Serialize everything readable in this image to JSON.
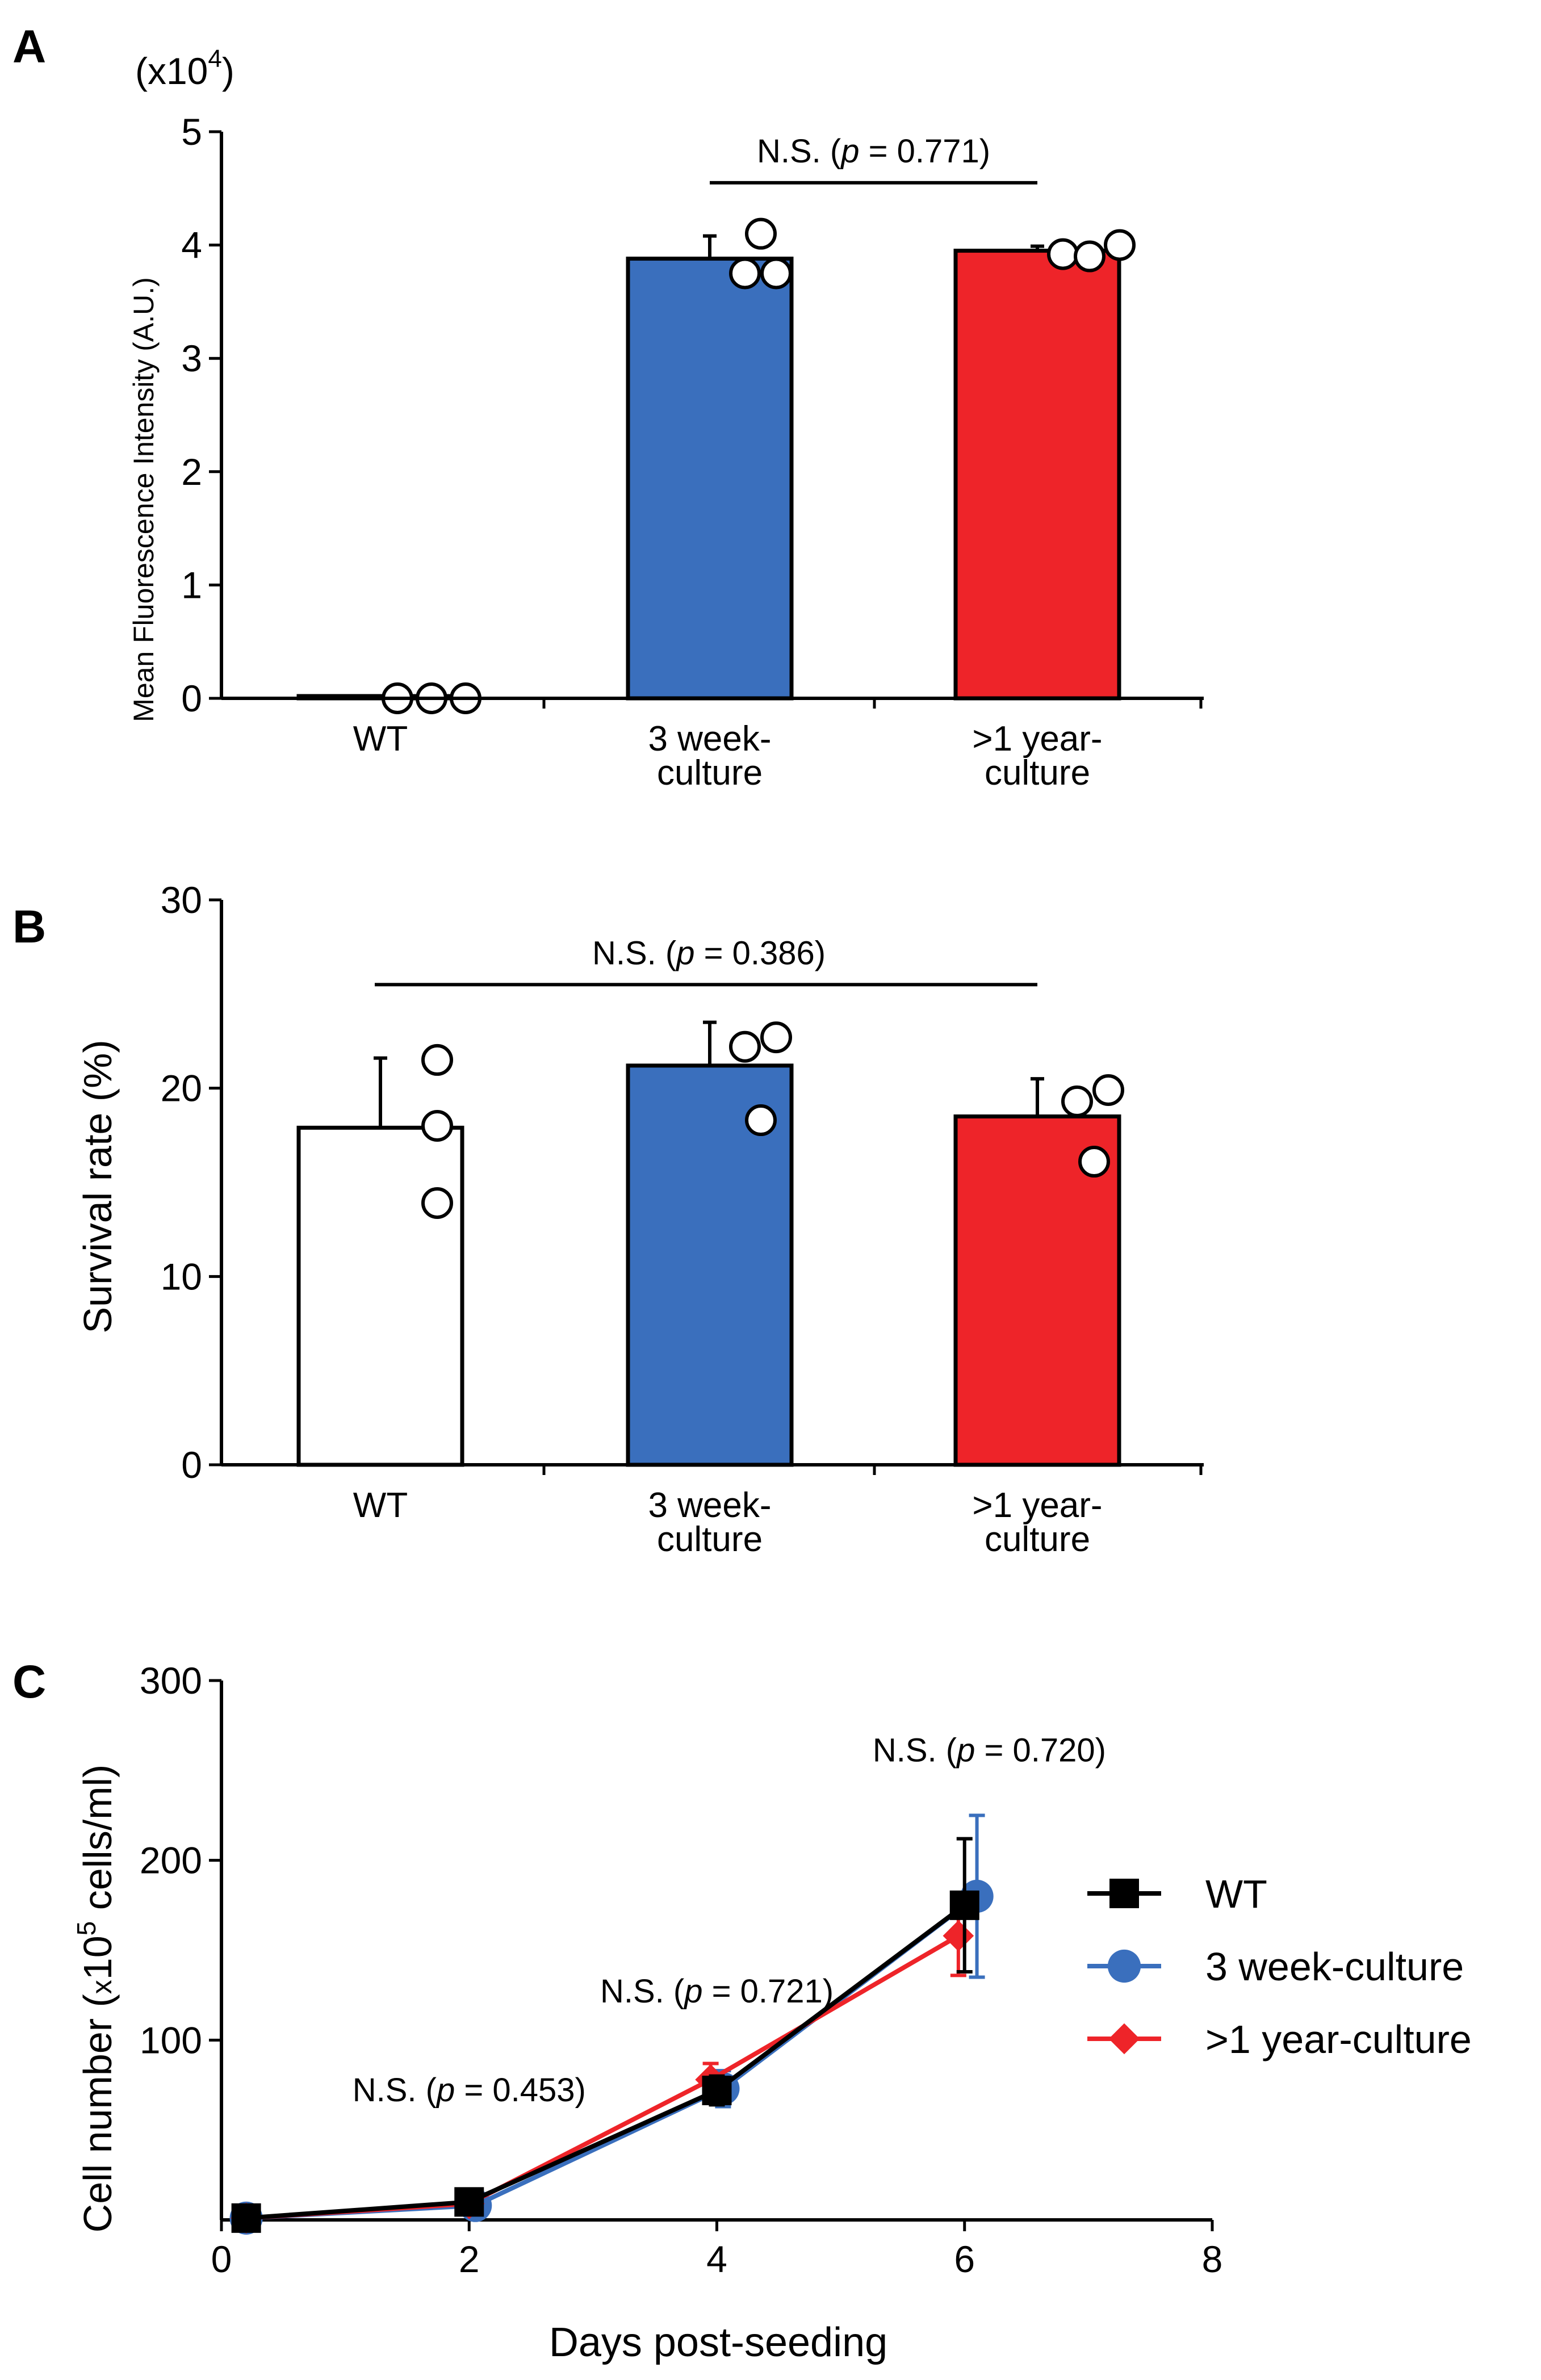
{
  "chart_data": [
    {
      "panel": "A",
      "type": "bar",
      "ylabel": "Mean Fluorescence Intensity (A.U.)",
      "y_multiplier": "(x10",
      "y_multiplier_exp": "4",
      "y_multiplier_close": ")",
      "ylim": [
        0,
        5
      ],
      "yticks": [
        "0",
        "1",
        "2",
        "3",
        "4",
        "5"
      ],
      "categories": [
        {
          "line1": "WT",
          "line2": ""
        },
        {
          "line1": "3 week-",
          "line2": "culture"
        },
        {
          "line1": ">1 year-",
          "line2": "culture"
        }
      ],
      "values": [
        0.02,
        3.88,
        3.95
      ],
      "errors": [
        0.0,
        0.2,
        0.04
      ],
      "bar_colors": [
        "#ffffff",
        "#3a6fbd",
        "#ee2429"
      ],
      "points": [
        [
          0.0,
          0.0,
          0.0
        ],
        [
          3.75,
          4.1,
          3.75
        ],
        [
          3.92,
          3.9,
          4.0
        ]
      ],
      "annotation": {
        "prefix": "N.S. (",
        "p": "p",
        "rest": " = 0.771)",
        "from": 1,
        "to": 2,
        "y": 4.55
      }
    },
    {
      "panel": "B",
      "type": "bar",
      "ylabel": "Survival rate (%)",
      "ylim": [
        0,
        30
      ],
      "yticks": [
        "0",
        "10",
        "20",
        "30"
      ],
      "categories": [
        {
          "line1": "WT",
          "line2": ""
        },
        {
          "line1": "3 week-",
          "line2": "culture"
        },
        {
          "line1": ">1 year-",
          "line2": "culture"
        }
      ],
      "values": [
        17.9,
        21.2,
        18.5
      ],
      "errors": [
        3.7,
        2.3,
        2.0
      ],
      "bar_colors": [
        "#ffffff",
        "#3a6fbd",
        "#ee2429"
      ],
      "points": [
        [
          21.5,
          18.0,
          13.9
        ],
        [
          22.2,
          22.7,
          18.3
        ],
        [
          19.3,
          19.9,
          16.1
        ]
      ],
      "annotation": {
        "prefix": "N.S. (",
        "p": "p",
        "rest": " = 0.386)",
        "from": 0,
        "to": 2,
        "y": 25.5
      }
    },
    {
      "panel": "C",
      "type": "line",
      "xlabel": "Days post-seeding",
      "ylabel_pre": "Cell number (",
      "ylabel_x": "x",
      "ylabel_base": "10",
      "ylabel_exp": "5",
      "ylabel_post": " cells/ml)",
      "xlim": [
        0,
        8
      ],
      "ylim": [
        0,
        300
      ],
      "xticks": [
        "0",
        "2",
        "4",
        "6",
        "8"
      ],
      "yticks": [
        "100",
        "200",
        "300"
      ],
      "ytick_values": [
        100,
        200,
        300
      ],
      "xtick_values": [
        0,
        2,
        4,
        6,
        8
      ],
      "series": [
        {
          "name": "WT",
          "color": "#000000",
          "marker": "square",
          "x": [
            0.2,
            2.0,
            4.0,
            6.0
          ],
          "y": [
            1,
            10,
            72,
            175
          ],
          "err": [
            0,
            2,
            8,
            37
          ]
        },
        {
          "name": "3 week-culture",
          "color": "#3a6fbd",
          "marker": "circle",
          "x": [
            0.2,
            2.05,
            4.05,
            6.1
          ],
          "y": [
            1,
            8,
            73,
            180
          ],
          "err": [
            0,
            2,
            10,
            45
          ]
        },
        {
          "name": ">1 year-culture",
          "color": "#ee2429",
          "marker": "diamond",
          "x": [
            0.2,
            2.0,
            3.95,
            5.95
          ],
          "y": [
            1,
            9,
            78,
            158
          ],
          "err": [
            0,
            2,
            9,
            22
          ]
        }
      ],
      "annotations": [
        {
          "prefix": "N.S. (",
          "p": "p",
          "rest": " = 0.453)",
          "x": 2.0,
          "y": 66
        },
        {
          "prefix": "N.S. (",
          "p": "p",
          "rest": " = 0.721)",
          "x": 4.0,
          "y": 121
        },
        {
          "prefix": "N.S. (",
          "p": "p",
          "rest": " = 0.720)",
          "x": 6.2,
          "y": 255
        }
      ]
    }
  ]
}
